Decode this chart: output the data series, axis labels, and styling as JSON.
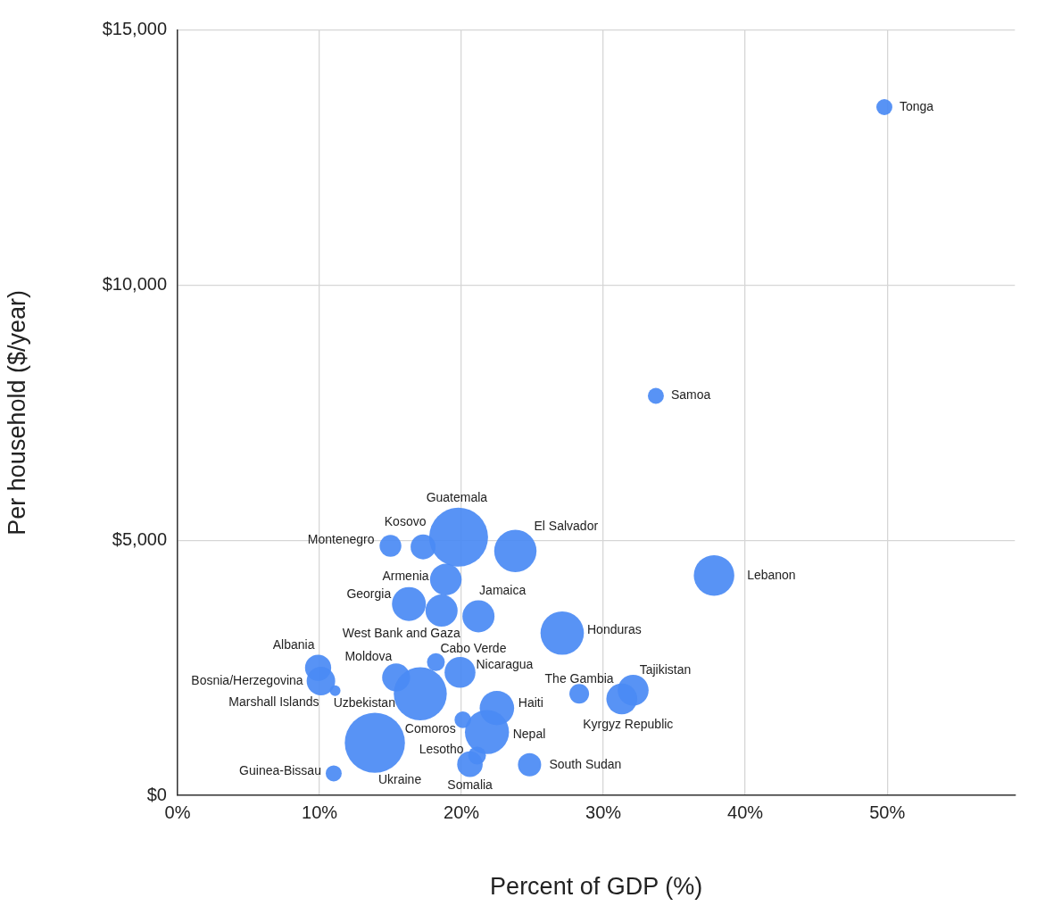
{
  "chart_data": {
    "type": "bubble",
    "xlabel": "Percent of GDP (%)",
    "ylabel": "Per household ($/year)",
    "xlim": [
      0,
      59
    ],
    "xticks": [
      {
        "value": 0,
        "label": "0%"
      },
      {
        "value": 10,
        "label": "10%"
      },
      {
        "value": 20,
        "label": "20%"
      },
      {
        "value": 30,
        "label": "30%"
      },
      {
        "value": 40,
        "label": "40%"
      },
      {
        "value": 50,
        "label": "50%"
      }
    ],
    "ylim": [
      0,
      15000
    ],
    "yticks": [
      {
        "value": 0,
        "label": "$0"
      },
      {
        "value": 5000,
        "label": "$5,000"
      },
      {
        "value": 10000,
        "label": "$10,000"
      },
      {
        "value": 15000,
        "label": "$15,000"
      }
    ],
    "grid": true,
    "legend": false,
    "series": [
      {
        "color": "#4a8af4",
        "x": [
          15.0,
          17.3,
          19.8,
          23.8,
          18.9,
          16.3,
          18.6,
          21.2,
          9.9,
          10.1,
          11.1,
          15.4,
          17.1,
          18.2,
          19.9,
          20.1,
          22.5,
          21.8,
          21.1,
          20.6,
          13.9,
          11.0,
          24.8,
          37.8,
          27.1,
          28.3,
          32.1,
          31.3,
          33.7,
          49.8
        ],
        "values": [
          4890,
          4870,
          5060,
          4790,
          4230,
          3750,
          3620,
          3510,
          2500,
          2240,
          2050,
          2310,
          1990,
          2610,
          2410,
          1480,
          1710,
          1240,
          780,
          610,
          1030,
          430,
          600,
          4310,
          3180,
          1990,
          2060,
          1890,
          7830,
          13490
        ],
        "sizes": [
          0.131,
          0.173,
          0.959,
          0.495,
          0.276,
          0.318,
          0.285,
          0.285,
          0.19,
          0.225,
          0.032,
          0.217,
          0.777,
          0.088,
          0.264,
          0.076,
          0.328,
          0.537,
          0.088,
          0.18,
          1,
          0.071,
          0.149,
          0.454,
          0.52,
          0.107,
          0.264,
          0.264,
          0.071,
          0.071
        ]
      }
    ],
    "annotations": [
      {
        "text": "Montenegro",
        "x": 15.0,
        "y": 4890
      },
      {
        "text": "Kosovo",
        "x": 17.3,
        "y": 4870
      },
      {
        "text": "Guatemala",
        "x": 19.8,
        "y": 5060
      },
      {
        "text": "El Salvador",
        "x": 23.8,
        "y": 4790
      },
      {
        "text": "Armenia",
        "x": 18.9,
        "y": 4230
      },
      {
        "text": "Georgia",
        "x": 16.3,
        "y": 3750
      },
      {
        "text": "West Bank and Gaza",
        "x": 18.6,
        "y": 3620
      },
      {
        "text": "Jamaica",
        "x": 21.2,
        "y": 3510
      },
      {
        "text": "Albania",
        "x": 9.9,
        "y": 2500
      },
      {
        "text": "Bosnia/Herzegovina",
        "x": 10.1,
        "y": 2240
      },
      {
        "text": "Marshall Islands",
        "x": 11.1,
        "y": 2050
      },
      {
        "text": "Moldova",
        "x": 15.4,
        "y": 2310
      },
      {
        "text": "Uzbekistan",
        "x": 17.1,
        "y": 1990
      },
      {
        "text": "Cabo Verde",
        "x": 18.2,
        "y": 2610
      },
      {
        "text": "Nicaragua",
        "x": 19.9,
        "y": 2410
      },
      {
        "text": "Comoros",
        "x": 20.1,
        "y": 1480
      },
      {
        "text": "Haiti",
        "x": 22.5,
        "y": 1710
      },
      {
        "text": "Nepal",
        "x": 21.8,
        "y": 1240
      },
      {
        "text": "Lesotho",
        "x": 21.1,
        "y": 780
      },
      {
        "text": "Somalia",
        "x": 20.6,
        "y": 610
      },
      {
        "text": "Ukraine",
        "x": 13.9,
        "y": 1030
      },
      {
        "text": "Guinea-Bissau",
        "x": 11.0,
        "y": 430
      },
      {
        "text": "South Sudan",
        "x": 24.8,
        "y": 600
      },
      {
        "text": "Lebanon",
        "x": 37.8,
        "y": 4310
      },
      {
        "text": "Honduras",
        "x": 27.1,
        "y": 3180
      },
      {
        "text": "The Gambia",
        "x": 28.3,
        "y": 1990
      },
      {
        "text": "Tajikistan",
        "x": 32.1,
        "y": 2060
      },
      {
        "text": "Kyrgyz Republic",
        "x": 31.3,
        "y": 1890
      },
      {
        "text": "Samoa",
        "x": 33.7,
        "y": 7830
      },
      {
        "text": "Tonga",
        "x": 49.8,
        "y": 13490
      }
    ]
  }
}
